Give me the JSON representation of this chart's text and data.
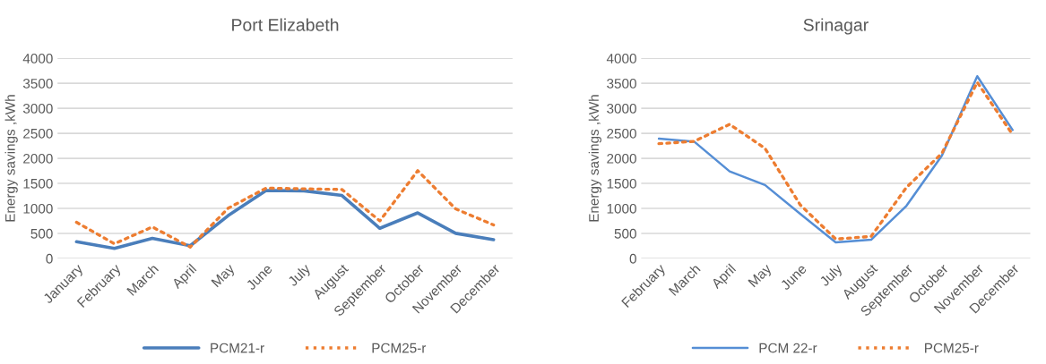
{
  "chart_data": [
    {
      "type": "line",
      "title": "Port Elizabeth",
      "ylabel": "Energy savings ,kWh",
      "categories": [
        "January",
        "February",
        "March",
        "April",
        "May",
        "June",
        "July",
        "August",
        "September",
        "October",
        "November",
        "December"
      ],
      "series": [
        {
          "name": "PCM21-r",
          "color": "#4a7ebb",
          "line_style": "solid",
          "values": [
            334,
            200,
            400,
            254,
            856,
            1358,
            1351,
            1258,
            602,
            910,
            502,
            375
          ]
        },
        {
          "name": "PCM25-r",
          "color": "#ed7d31",
          "line_style": "dotted",
          "values": [
            722,
            294,
            629,
            227,
            1003,
            1405,
            1391,
            1378,
            749,
            1753,
            990,
            669
          ]
        }
      ],
      "ylim": [
        0,
        4000
      ],
      "yticks": [
        0,
        500,
        1000,
        1500,
        2000,
        2500,
        3000,
        3500,
        4000
      ],
      "grid": "y",
      "legend": "bottom"
    },
    {
      "type": "line",
      "title": "Srinagar",
      "ylabel": "Energy savings ,kWh",
      "categories": [
        "February",
        "March",
        "April",
        "May",
        "June",
        "July",
        "August",
        "September",
        "October",
        "November",
        "December"
      ],
      "series": [
        {
          "name": "PCM 22-r",
          "color": "#558ed5",
          "line_style": "solid",
          "values": [
            2393,
            2333,
            1740,
            1467,
            887,
            320,
            373,
            1053,
            2053,
            3640,
            2567
          ]
        },
        {
          "name": "PCM25-r",
          "color": "#ed7d31",
          "line_style": "dotted",
          "values": [
            2293,
            2340,
            2680,
            2200,
            1067,
            387,
            440,
            1420,
            2100,
            3520,
            2473
          ]
        }
      ],
      "ylim": [
        0,
        4000
      ],
      "yticks": [
        0,
        500,
        1000,
        1500,
        2000,
        2500,
        3000,
        3500,
        4000
      ],
      "grid": "y",
      "legend": "bottom"
    }
  ]
}
